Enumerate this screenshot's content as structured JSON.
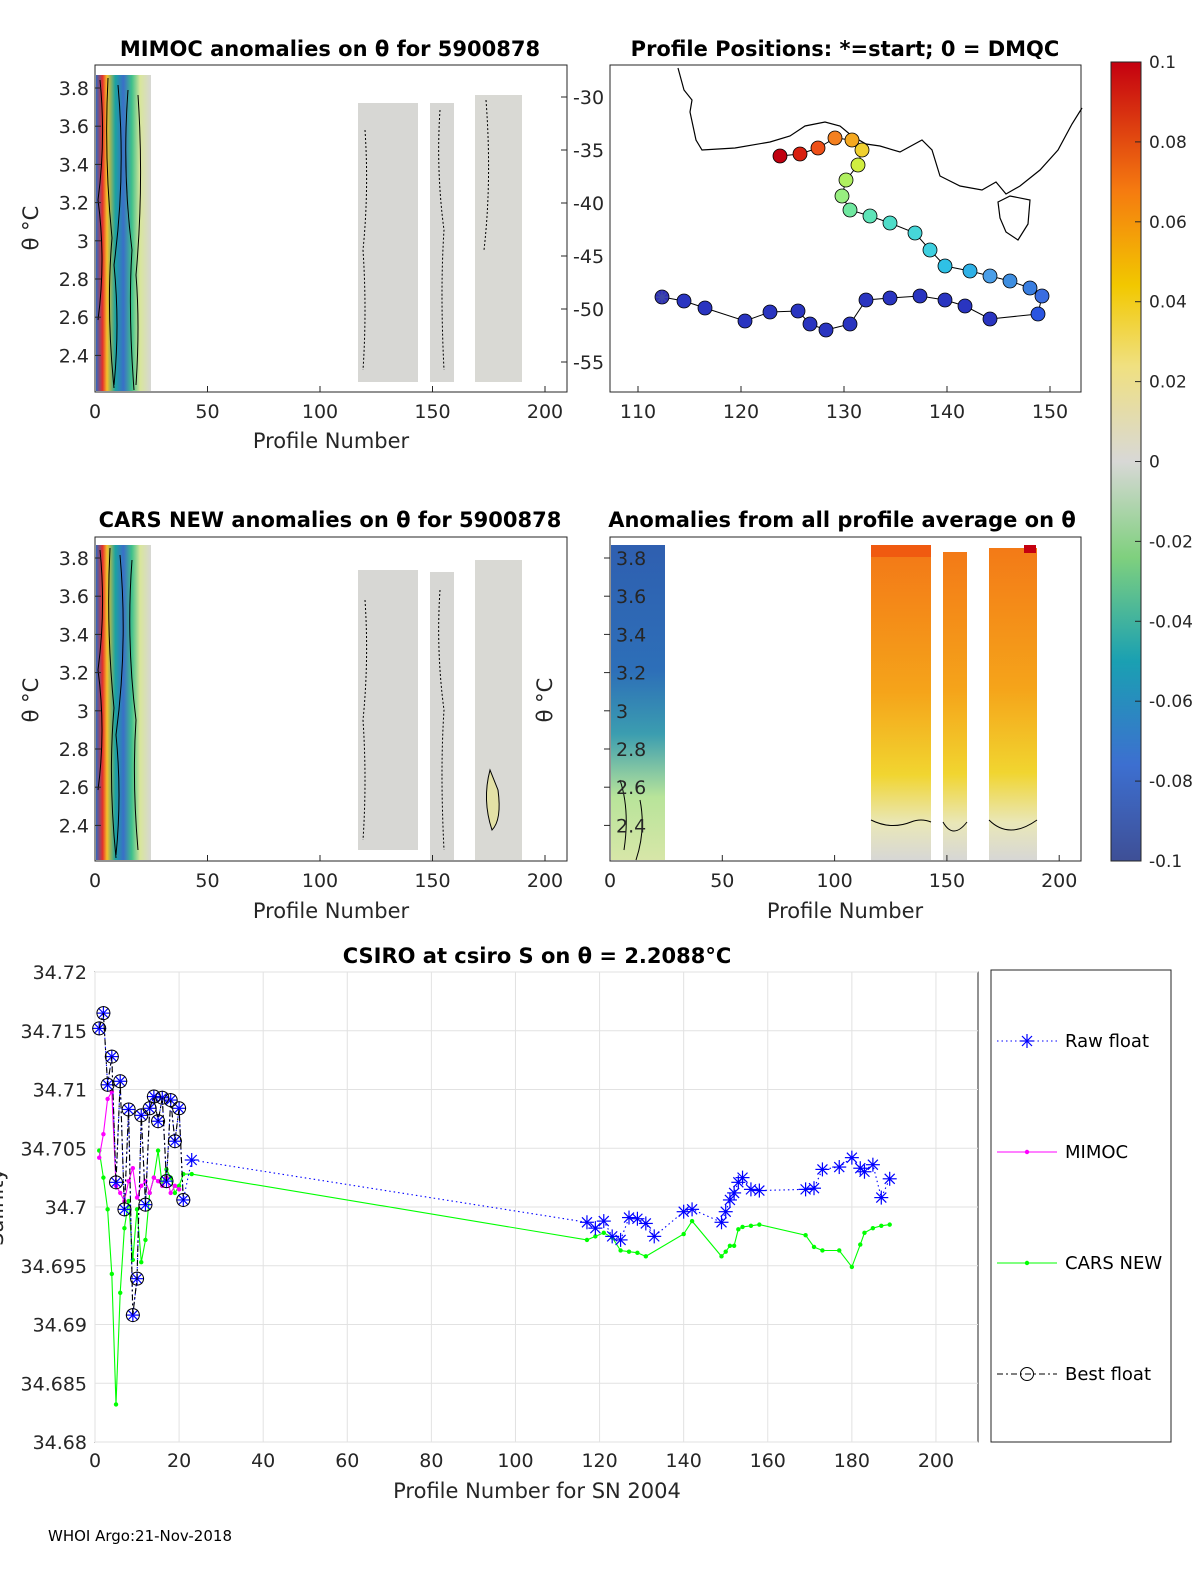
{
  "footer": "WHOI Argo:21-Nov-2018",
  "colors": {
    "raw": "#0000ff",
    "mimoc": "#ff00ff",
    "cars": "#00ff00",
    "best": "#000000",
    "anom_gray": "#d6d6d4",
    "track_line": "#000000"
  },
  "panels": {
    "mimoc": {
      "title": "MIMOC anomalies on θ  for 5900878",
      "ylabel": "θ °C",
      "xlabel": "Profile Number",
      "yticks": [
        "3.8",
        "3.6",
        "3.4",
        "3.2",
        "3",
        "2.8",
        "2.6",
        "2.4"
      ],
      "xticks": [
        "0",
        "50",
        "100",
        "150",
        "200"
      ]
    },
    "map": {
      "title": "Profile Positions: *=start; 0 = DMQC",
      "yticks": [
        "-30",
        "-35",
        "-40",
        "-45",
        "-50",
        "-55"
      ],
      "xticks": [
        "110",
        "120",
        "130",
        "140",
        "150"
      ]
    },
    "cars": {
      "title": "CARS NEW anomalies on θ for 5900878",
      "ylabel": "θ °C",
      "xlabel": "Profile Number",
      "yticks": [
        "3.8",
        "3.6",
        "3.4",
        "3.2",
        "3",
        "2.8",
        "2.6",
        "2.4"
      ],
      "xticks": [
        "0",
        "50",
        "100",
        "150",
        "200"
      ]
    },
    "avg": {
      "title": "Anomalies from all profile average on θ",
      "ylabel": "θ °C",
      "xlabel": "Profile Number",
      "yticks": [
        "3.8",
        "3.6",
        "3.4",
        "3.2",
        "3",
        "2.8",
        "2.6",
        "2.4"
      ],
      "xticks": [
        "0",
        "50",
        "100",
        "150",
        "200"
      ]
    }
  },
  "colorbar": {
    "ticks": [
      "0.1",
      "0.08",
      "0.06",
      "0.04",
      "0.02",
      "0",
      "-0.02",
      "-0.04",
      "-0.06",
      "-0.08",
      "-0.1"
    ],
    "range": [
      -0.1,
      0.1
    ]
  },
  "chart_data": {
    "type": "line",
    "title": "CSIRO at csiro S on θ = 2.2088°C",
    "xlabel": "Profile Number for SN 2004",
    "ylabel": "Salinity",
    "xlim": [
      0,
      210
    ],
    "ylim": [
      34.68,
      34.72
    ],
    "xticks": [
      "0",
      "20",
      "40",
      "60",
      "80",
      "100",
      "120",
      "140",
      "160",
      "180",
      "200"
    ],
    "yticks": [
      "34.72",
      "34.715",
      "34.71",
      "34.705",
      "34.7",
      "34.695",
      "34.69",
      "34.685",
      "34.68"
    ],
    "legend": [
      "Raw float",
      "MIMOC",
      "CARS NEW",
      "Best float"
    ],
    "series": [
      {
        "name": "Raw float",
        "x": [
          1,
          2,
          3,
          4,
          5,
          6,
          7,
          8,
          9,
          10,
          11,
          12,
          13,
          14,
          15,
          16,
          17,
          18,
          19,
          20,
          21,
          23,
          117,
          119,
          121,
          123,
          125,
          127,
          129,
          131,
          133,
          140,
          142,
          149,
          150,
          151,
          152,
          153,
          154,
          156,
          158,
          169,
          171,
          173,
          177,
          180,
          182,
          183,
          185,
          187,
          189
        ],
        "y": [
          34.7152,
          34.7165,
          34.7104,
          34.7128,
          34.7021,
          34.7107,
          34.6998,
          34.7083,
          34.6908,
          34.6939,
          34.7078,
          34.7002,
          34.7084,
          34.7094,
          34.7073,
          34.7093,
          34.7022,
          34.7091,
          34.7056,
          34.7084,
          34.7006,
          34.704,
          34.6987,
          34.6982,
          34.6988,
          34.6975,
          34.6972,
          34.6991,
          34.699,
          34.6986,
          34.6975,
          34.6996,
          34.6998,
          34.6987,
          34.6996,
          34.7006,
          34.7012,
          34.7021,
          34.7025,
          34.7015,
          34.7014,
          34.7015,
          34.7016,
          34.7032,
          34.7034,
          34.7042,
          34.7033,
          34.703,
          34.7036,
          34.7008,
          34.7024
        ]
      },
      {
        "name": "MIMOC",
        "x": [
          1,
          2,
          3,
          4,
          5,
          6,
          7,
          8,
          9,
          10,
          11,
          12,
          13,
          14,
          15,
          16,
          17,
          18,
          19,
          20
        ],
        "y": [
          34.7042,
          34.7062,
          34.7092,
          34.7098,
          34.7018,
          34.7012,
          34.7005,
          34.7022,
          34.7033,
          34.7008,
          34.7018,
          34.7022,
          34.7012,
          34.7025,
          34.7022,
          34.7018,
          34.7025,
          34.7012,
          34.7018,
          34.7015
        ]
      },
      {
        "name": "CARS NEW",
        "x": [
          1,
          2,
          3,
          4,
          5,
          6,
          7,
          8,
          9,
          10,
          11,
          12,
          13,
          14,
          15,
          16,
          17,
          18,
          19,
          20,
          21,
          23,
          117,
          119,
          121,
          123,
          125,
          127,
          129,
          131,
          140,
          142,
          149,
          150,
          151,
          152,
          153,
          154,
          156,
          158,
          169,
          171,
          173,
          177,
          180,
          182,
          183,
          185,
          187,
          189
        ],
        "y": [
          34.7048,
          34.7025,
          34.6998,
          34.6943,
          34.6832,
          34.6927,
          34.6982,
          34.7005,
          34.6955,
          34.6998,
          34.6953,
          34.6972,
          34.7012,
          34.7025,
          34.7048,
          34.7018,
          34.7032,
          34.7025,
          34.7012,
          34.7018,
          34.7028,
          34.7028,
          34.6972,
          34.6975,
          34.6978,
          34.6974,
          34.6963,
          34.6962,
          34.6961,
          34.6958,
          34.6977,
          34.6988,
          34.6958,
          34.6962,
          34.6967,
          34.6967,
          34.6981,
          34.6983,
          34.6984,
          34.6985,
          34.6976,
          34.6966,
          34.6963,
          34.6963,
          34.6949,
          34.6968,
          34.6978,
          34.6982,
          34.6984,
          34.6985
        ]
      },
      {
        "name": "Best float",
        "x": [
          1,
          2,
          3,
          4,
          5,
          6,
          7,
          8,
          9,
          10,
          11,
          12,
          13,
          14,
          15,
          16,
          17,
          18,
          19,
          20,
          21
        ],
        "y": [
          34.7152,
          34.7165,
          34.7104,
          34.7128,
          34.7021,
          34.7107,
          34.6998,
          34.7083,
          34.6908,
          34.6939,
          34.7078,
          34.7002,
          34.7084,
          34.7094,
          34.7073,
          34.7093,
          34.7022,
          34.7091,
          34.7056,
          34.7084,
          34.7006
        ]
      }
    ]
  }
}
